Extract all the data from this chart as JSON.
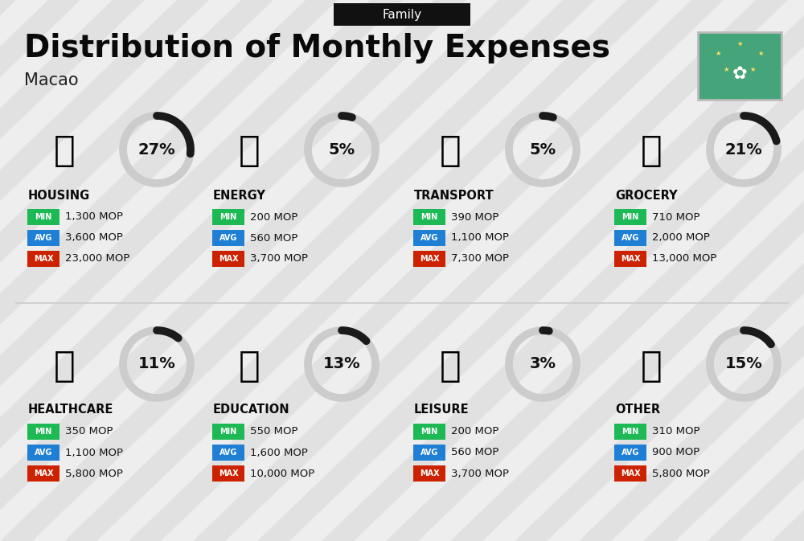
{
  "title": "Distribution of Monthly Expenses",
  "subtitle": "Family",
  "location": "Macao",
  "bg_color": "#eeeeee",
  "categories": [
    {
      "name": "HOUSING",
      "pct": 27,
      "min_val": "1,300 MOP",
      "avg_val": "3,600 MOP",
      "max_val": "23,000 MOP",
      "row": 0,
      "col": 0
    },
    {
      "name": "ENERGY",
      "pct": 5,
      "min_val": "200 MOP",
      "avg_val": "560 MOP",
      "max_val": "3,700 MOP",
      "row": 0,
      "col": 1
    },
    {
      "name": "TRANSPORT",
      "pct": 5,
      "min_val": "390 MOP",
      "avg_val": "1,100 MOP",
      "max_val": "7,300 MOP",
      "row": 0,
      "col": 2
    },
    {
      "name": "GROCERY",
      "pct": 21,
      "min_val": "710 MOP",
      "avg_val": "2,000 MOP",
      "max_val": "13,000 MOP",
      "row": 0,
      "col": 3
    },
    {
      "name": "HEALTHCARE",
      "pct": 11,
      "min_val": "350 MOP",
      "avg_val": "1,100 MOP",
      "max_val": "5,800 MOP",
      "row": 1,
      "col": 0
    },
    {
      "name": "EDUCATION",
      "pct": 13,
      "min_val": "550 MOP",
      "avg_val": "1,600 MOP",
      "max_val": "10,000 MOP",
      "row": 1,
      "col": 1
    },
    {
      "name": "LEISURE",
      "pct": 3,
      "min_val": "200 MOP",
      "avg_val": "560 MOP",
      "max_val": "3,700 MOP",
      "row": 1,
      "col": 2
    },
    {
      "name": "OTHER",
      "pct": 15,
      "min_val": "310 MOP",
      "avg_val": "900 MOP",
      "max_val": "5,800 MOP",
      "row": 1,
      "col": 3
    }
  ],
  "color_min": "#1db954",
  "color_avg": "#1e7fd4",
  "color_max": "#cc2200",
  "donut_color": "#1a1a1a",
  "donut_bg": "#cccccc",
  "header_bg": "#111111",
  "header_fg": "#ffffff",
  "stripe_color": "#d5d5d5",
  "flag_color": "#45a47a"
}
